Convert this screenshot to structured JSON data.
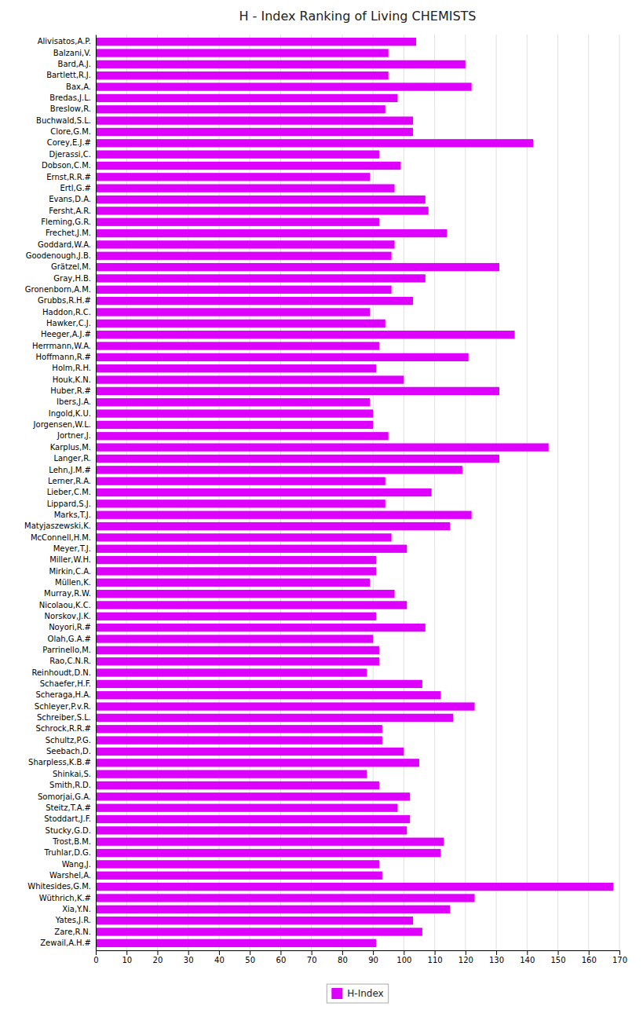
{
  "chart_data": {
    "type": "bar",
    "orientation": "horizontal",
    "title": "H - Index Ranking of Living CHEMISTS",
    "categories": [
      "Alivisatos,A.P.",
      "Balzani,V.",
      "Bard,A.J.",
      "Bartlett,R.J.",
      "Bax,A.",
      "Bredas,J.L.",
      "Breslow,R.",
      "Buchwald,S.L.",
      "Clore,G.M.",
      "Corey,E.J.#",
      "Djerassi,C.",
      "Dobson,C.M.",
      "Ernst,R.R.#",
      "Ertl,G.#",
      "Evans,D.A.",
      "Fersht,A.R.",
      "Fleming,G.R.",
      "Frechet,J.M.",
      "Goddard,W.A.",
      "Goodenough,J.B.",
      "Grätzel,M.",
      "Gray,H.B.",
      "Gronenborn,A.M.",
      "Grubbs,R.H.#",
      "Haddon,R.C.",
      "Hawker,C.J.",
      "Heeger,A.J.#",
      "Herrmann,W.A.",
      "Hoffmann,R.#",
      "Holm,R.H.",
      "Houk,K.N.",
      "Huber,R.#",
      "Ibers,J.A.",
      "Ingold,K.U.",
      "Jorgensen,W.L.",
      "Jortner,J.",
      "Karplus,M.",
      "Langer,R.",
      "Lehn,J.M.#",
      "Lerner,R.A.",
      "Lieber,C.M.",
      "Lippard,S.J.",
      "Marks,T.J.",
      "Matyjaszewski,K.",
      "McConnell,H.M.",
      "Meyer,T.J.",
      "Miller,W.H.",
      "Mirkin,C.A.",
      "Müllen,K.",
      "Murray,R.W.",
      "Nicolaou,K.C.",
      "Norskov,J.K.",
      "Noyori,R.#",
      "Olah,G.A.#",
      "Parrinello,M.",
      "Rao,C.N.R.",
      "Reinhoudt,D.N.",
      "Schaefer,H.F.",
      "Scheraga,H.A.",
      "Schleyer,P.v.R.",
      "Schreiber,S.L.",
      "Schrock,R.R.#",
      "Schultz,P.G.",
      "Seebach,D.",
      "Sharpless,K.B.#",
      "Shinkai,S.",
      "Smith,R.D.",
      "Somorjai,G.A.",
      "Steitz,T.A.#",
      "Stoddart,J.F.",
      "Stucky,G.D.",
      "Trost,B.M.",
      "Truhlar,D.G.",
      "Wang,J.",
      "Warshel,A.",
      "Whitesides,G.M.",
      "Wüthrich,K.#",
      "Xia,Y.N.",
      "Yates,J.R.",
      "Zare,R.N.",
      "Zewail,A.H.#"
    ],
    "series": [
      {
        "name": "H-Index",
        "color": "#DD00FF",
        "values": [
          104,
          95,
          120,
          95,
          122,
          98,
          94,
          103,
          103,
          142,
          92,
          99,
          89,
          97,
          107,
          108,
          92,
          114,
          97,
          96,
          131,
          107,
          96,
          103,
          89,
          94,
          136,
          92,
          121,
          91,
          100,
          131,
          89,
          90,
          90,
          95,
          147,
          131,
          119,
          94,
          109,
          94,
          122,
          115,
          96,
          101,
          91,
          91,
          89,
          97,
          101,
          91,
          107,
          90,
          92,
          92,
          88,
          106,
          112,
          123,
          116,
          93,
          93,
          100,
          105,
          88,
          92,
          102,
          98,
          102,
          101,
          113,
          112,
          92,
          93,
          168,
          123,
          115,
          103,
          106,
          91
        ]
      }
    ],
    "xlim": [
      0,
      170
    ],
    "xticks": [
      0,
      10,
      20,
      30,
      40,
      50,
      60,
      70,
      80,
      90,
      100,
      110,
      120,
      130,
      140,
      150,
      160,
      170
    ],
    "grid": true,
    "legend": "bottom"
  }
}
